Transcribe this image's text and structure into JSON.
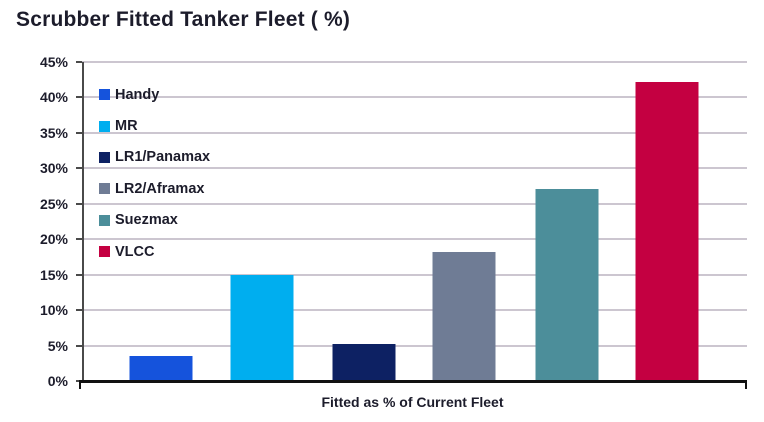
{
  "title": "Scrubber Fitted Tanker Fleet ( %)",
  "chart_data": {
    "type": "bar",
    "title": "Scrubber Fitted Tanker Fleet ( %)",
    "xlabel": "Fitted as % of Current Fleet",
    "ylabel": "",
    "categories": [
      "Handy",
      "MR",
      "LR1/Panamax",
      "LR2/Aframax",
      "Suezmax",
      "VLCC"
    ],
    "values": [
      3.4,
      14.8,
      5.1,
      18.1,
      27,
      42
    ],
    "colors": [
      "#1553dc",
      "#00aeef",
      "#0d2163",
      "#6f7c95",
      "#4c8e9a",
      "#c40041"
    ],
    "ylim": [
      0,
      45
    ],
    "ytick_step": 5,
    "ytick_labels": [
      "0%",
      "5%",
      "10%",
      "15%",
      "20%",
      "25%",
      "30%",
      "35%",
      "40%",
      "45%"
    ],
    "grid": true,
    "gridline_color": "#ccc6d0",
    "axis_color": "#111111",
    "text_color": "#1c1c2b",
    "legend_position": "top-left-inside"
  }
}
